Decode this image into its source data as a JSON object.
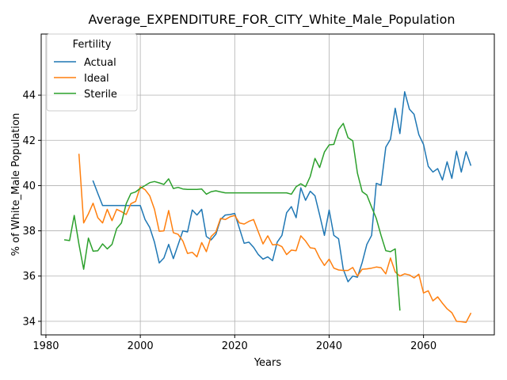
{
  "chart_data": {
    "type": "line",
    "title": "Average_EXPENDITURE_FOR_CITY_White_Male_Population",
    "xlabel": "Years",
    "ylabel": "% of White_Male Population",
    "xlim": [
      1979,
      2075
    ],
    "ylim": [
      33.4,
      46.7
    ],
    "xticks": [
      1980,
      2000,
      2020,
      2040,
      2060
    ],
    "yticks": [
      34,
      36,
      38,
      40,
      42,
      44
    ],
    "grid": true,
    "legend": {
      "title": "Fertility",
      "placement": "top-left"
    },
    "series": [
      {
        "name": "Actual",
        "color": "#1f77b4",
        "x": [
          1990,
          1991,
          1992,
          1993,
          1994,
          1995,
          1996,
          1997,
          1998,
          1999,
          2000,
          2001,
          2002,
          2003,
          2004,
          2005,
          2006,
          2007,
          2008,
          2009,
          2010,
          2011,
          2012,
          2013,
          2014,
          2015,
          2016,
          2017,
          2018,
          2019,
          2020,
          2021,
          2022,
          2023,
          2024,
          2025,
          2026,
          2027,
          2028,
          2029,
          2030,
          2031,
          2032,
          2033,
          2034,
          2035,
          2036,
          2037,
          2038,
          2039,
          2040,
          2041,
          2042,
          2043,
          2044,
          2045,
          2046,
          2047,
          2048,
          2049,
          2050,
          2051,
          2052,
          2053,
          2054,
          2055,
          2056,
          2057,
          2058,
          2059,
          2060,
          2061,
          2062,
          2063,
          2064,
          2065,
          2066,
          2067,
          2068,
          2069,
          2070
        ],
        "values": [
          40.2,
          39.65,
          39.12,
          39.12,
          39.12,
          39.12,
          39.12,
          39.12,
          39.12,
          39.12,
          39.12,
          38.5,
          38.15,
          37.5,
          36.58,
          36.8,
          37.4,
          36.77,
          37.38,
          38.0,
          37.95,
          38.92,
          38.7,
          38.95,
          37.75,
          37.6,
          37.85,
          38.5,
          38.7,
          38.72,
          38.77,
          38.1,
          37.45,
          37.5,
          37.27,
          36.95,
          36.75,
          36.85,
          36.68,
          37.5,
          37.8,
          38.8,
          39.07,
          38.58,
          39.9,
          39.35,
          39.75,
          39.55,
          38.7,
          37.8,
          38.92,
          37.8,
          37.65,
          36.3,
          35.75,
          36.0,
          35.95,
          36.6,
          37.4,
          37.8,
          40.1,
          40.02,
          41.7,
          42.05,
          43.42,
          42.3,
          44.15,
          43.38,
          43.15,
          42.25,
          41.82,
          40.85,
          40.6,
          40.75,
          40.25,
          41.05,
          40.32,
          41.52,
          40.6,
          41.5,
          40.9
        ]
      },
      {
        "name": "Ideal",
        "color": "#ff7f0e",
        "x": [
          1987,
          1988,
          1989,
          1990,
          1991,
          1992,
          1993,
          1994,
          1995,
          1996,
          1997,
          1998,
          1999,
          2000,
          2001,
          2002,
          2003,
          2004,
          2005,
          2006,
          2007,
          2008,
          2009,
          2010,
          2011,
          2012,
          2013,
          2014,
          2015,
          2016,
          2017,
          2018,
          2019,
          2020,
          2021,
          2022,
          2023,
          2024,
          2025,
          2026,
          2027,
          2028,
          2029,
          2030,
          2031,
          2032,
          2033,
          2034,
          2035,
          2036,
          2037,
          2038,
          2039,
          2040,
          2041,
          2042,
          2043,
          2044,
          2045,
          2046,
          2047,
          2048,
          2049,
          2050,
          2051,
          2052,
          2053,
          2054,
          2055,
          2056,
          2057,
          2058,
          2059,
          2060,
          2061,
          2062,
          2063,
          2064,
          2065,
          2066,
          2067,
          2068,
          2069,
          2070
        ],
        "values": [
          41.38,
          38.35,
          38.75,
          39.22,
          38.58,
          38.35,
          38.95,
          38.45,
          38.95,
          38.85,
          38.72,
          39.2,
          39.3,
          39.95,
          39.82,
          39.55,
          38.95,
          37.98,
          38.0,
          38.9,
          37.92,
          37.85,
          37.55,
          37.0,
          37.05,
          36.85,
          37.48,
          37.08,
          37.75,
          37.95,
          38.55,
          38.5,
          38.62,
          38.68,
          38.35,
          38.3,
          38.42,
          38.5,
          37.95,
          37.42,
          37.78,
          37.38,
          37.4,
          37.3,
          36.95,
          37.15,
          37.12,
          37.78,
          37.55,
          37.25,
          37.22,
          36.8,
          36.47,
          36.75,
          36.35,
          36.27,
          36.25,
          36.25,
          36.38,
          36.0,
          36.3,
          36.32,
          36.35,
          36.4,
          36.37,
          36.1,
          36.8,
          36.18,
          36.0,
          36.1,
          36.05,
          35.92,
          36.08,
          35.25,
          35.35,
          34.9,
          35.08,
          34.8,
          34.55,
          34.38,
          34.0,
          33.98,
          33.95,
          34.35
        ]
      },
      {
        "name": "Sterile",
        "color": "#2ca02c",
        "x": [
          1984,
          1985,
          1986,
          1987,
          1988,
          1989,
          1990,
          1991,
          1992,
          1993,
          1994,
          1995,
          1996,
          1997,
          1998,
          1999,
          2000,
          2001,
          2002,
          2003,
          2004,
          2005,
          2006,
          2007,
          2008,
          2009,
          2010,
          2011,
          2012,
          2013,
          2014,
          2015,
          2016,
          2017,
          2018,
          2019,
          2020,
          2021,
          2022,
          2023,
          2024,
          2025,
          2026,
          2027,
          2028,
          2029,
          2030,
          2031,
          2032,
          2033,
          2034,
          2035,
          2036,
          2037,
          2038,
          2039,
          2040,
          2041,
          2042,
          2043,
          2044,
          2045,
          2046,
          2047,
          2048,
          2049,
          2050,
          2051,
          2052,
          2053,
          2054,
          2055
        ],
        "values": [
          37.6,
          37.57,
          38.68,
          37.4,
          36.3,
          37.68,
          37.1,
          37.12,
          37.42,
          37.2,
          37.4,
          38.1,
          38.35,
          39.2,
          39.65,
          39.72,
          39.88,
          40.0,
          40.13,
          40.18,
          40.12,
          40.05,
          40.3,
          39.87,
          39.92,
          39.85,
          39.83,
          39.83,
          39.83,
          39.85,
          39.62,
          39.73,
          39.77,
          39.72,
          39.68,
          39.68,
          39.68,
          39.68,
          39.68,
          39.68,
          39.68,
          39.68,
          39.68,
          39.68,
          39.68,
          39.68,
          39.68,
          39.68,
          39.62,
          39.95,
          40.08,
          39.95,
          40.4,
          41.2,
          40.8,
          41.48,
          41.8,
          41.82,
          42.48,
          42.75,
          42.12,
          41.98,
          40.55,
          39.73,
          39.58,
          39.05,
          38.55,
          37.8,
          37.12,
          37.08,
          37.2,
          34.5
        ]
      }
    ]
  }
}
